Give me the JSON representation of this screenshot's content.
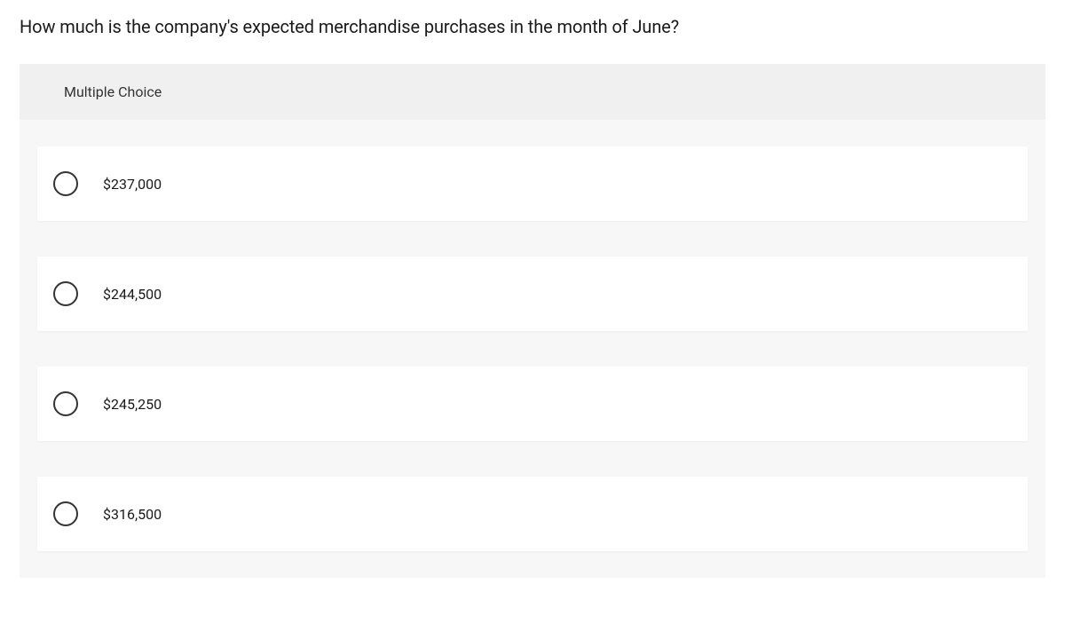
{
  "question": {
    "text": "How much is the company's expected merchandise purchases in the month of June?"
  },
  "section": {
    "header": "Multiple Choice"
  },
  "options": [
    {
      "label": "$237,000"
    },
    {
      "label": "$244,500"
    },
    {
      "label": "$245,250"
    },
    {
      "label": "$316,500"
    }
  ],
  "styling": {
    "question_fontsize": 20,
    "question_color": "#1a1a1a",
    "header_bg": "#f0f0f0",
    "container_bg": "#f7f7f7",
    "option_bg": "#ffffff",
    "radio_border_color": "#333333",
    "option_text_color": "#1a1a1a",
    "page_bg": "#ffffff"
  }
}
